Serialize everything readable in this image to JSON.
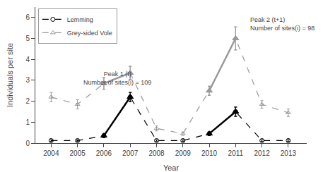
{
  "chart_data": {
    "type": "line",
    "x": [
      2004,
      2005,
      2006,
      2007,
      2008,
      2009,
      2010,
      2011,
      2012,
      2013
    ],
    "series": [
      {
        "name": "Lemming",
        "color": "#000000",
        "line_style": "dashed",
        "marker": "circle-open",
        "values": [
          0.12,
          0.12,
          0.35,
          2.2,
          0.12,
          0.12,
          0.45,
          1.5,
          0.12,
          0.12
        ],
        "errors": [
          0.04,
          0.04,
          0.08,
          0.22,
          0.04,
          0.04,
          0.08,
          0.22,
          0.04,
          0.04
        ]
      },
      {
        "name": "Grey-sided Vole",
        "color": "#999999",
        "line_style": "dashed",
        "marker": "triangle-up-open",
        "values": [
          2.2,
          1.85,
          2.85,
          3.35,
          0.7,
          0.45,
          2.5,
          5.0,
          1.85,
          1.45
        ],
        "errors": [
          0.22,
          0.22,
          0.28,
          0.32,
          0.12,
          0.08,
          0.22,
          0.55,
          0.18,
          0.18
        ]
      },
      {
        "color": "#000000",
        "line_style": "solid",
        "marker": "triangle-up",
        "values": [
          null,
          null,
          0.35,
          2.2,
          null,
          null,
          0.45,
          1.5,
          null,
          null
        ],
        "errors": [
          null,
          null,
          0.08,
          0.22,
          null,
          null,
          0.08,
          0.22,
          null,
          null
        ]
      },
      {
        "color": "#999999",
        "line_style": "solid",
        "marker": "triangle-up",
        "values": [
          null,
          null,
          2.85,
          3.35,
          null,
          null,
          2.5,
          5.0,
          null,
          null
        ],
        "errors": [
          null,
          null,
          0.28,
          0.32,
          null,
          null,
          0.22,
          0.55,
          null,
          null
        ]
      }
    ],
    "annotations": [
      {
        "text": "Peak 1 (t)\nNumber of sites(i) = 109",
        "x": 2006.5,
        "y": 2.65
      },
      {
        "text": "Peak 2 (t+1)\nNumber of sites(i) = 98",
        "x": 2011.5,
        "y": 5.25
      }
    ],
    "xlabel": "Year",
    "ylabel": "Individuals per site",
    "xlim": [
      2003.4,
      2013.7
    ],
    "xticks": [
      2004,
      2005,
      2006,
      2007,
      2008,
      2009,
      2010,
      2011,
      2012,
      2013
    ],
    "ylim": [
      0,
      6.5
    ],
    "yticks": [
      0,
      1,
      2,
      3,
      4,
      5,
      6
    ],
    "grid": false,
    "legend": "upper left"
  }
}
